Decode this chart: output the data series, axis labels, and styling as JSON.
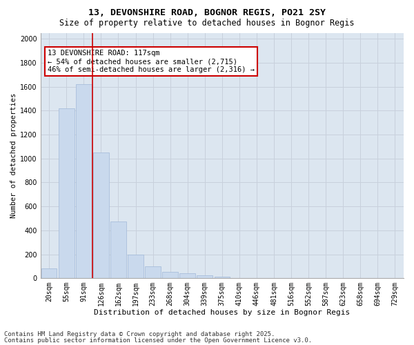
{
  "title_line1": "13, DEVONSHIRE ROAD, BOGNOR REGIS, PO21 2SY",
  "title_line2": "Size of property relative to detached houses in Bognor Regis",
  "xlabel": "Distribution of detached houses by size in Bognor Regis",
  "ylabel": "Number of detached properties",
  "categories": [
    "20sqm",
    "55sqm",
    "91sqm",
    "126sqm",
    "162sqm",
    "197sqm",
    "233sqm",
    "268sqm",
    "304sqm",
    "339sqm",
    "375sqm",
    "410sqm",
    "446sqm",
    "481sqm",
    "516sqm",
    "552sqm",
    "587sqm",
    "623sqm",
    "658sqm",
    "694sqm",
    "729sqm"
  ],
  "values": [
    80,
    1420,
    1620,
    1050,
    475,
    200,
    100,
    55,
    40,
    25,
    10,
    0,
    0,
    0,
    0,
    0,
    0,
    0,
    0,
    0,
    0
  ],
  "bar_color": "#c9d9ed",
  "bar_edge_color": "#a0b8d8",
  "grid_color": "#c8d0dc",
  "background_color": "#dce6f0",
  "vline_color": "#cc0000",
  "vline_pos": 2.5,
  "annotation_line1": "13 DEVONSHIRE ROAD: 117sqm",
  "annotation_line2": "← 54% of detached houses are smaller (2,715)",
  "annotation_line3": "46% of semi-detached houses are larger (2,316) →",
  "annotation_box_color": "#cc0000",
  "footer_line1": "Contains HM Land Registry data © Crown copyright and database right 2025.",
  "footer_line2": "Contains public sector information licensed under the Open Government Licence v3.0.",
  "ylim": [
    0,
    2050
  ],
  "yticks": [
    0,
    200,
    400,
    600,
    800,
    1000,
    1200,
    1400,
    1600,
    1800,
    2000
  ],
  "title_fontsize": 9.5,
  "subtitle_fontsize": 8.5,
  "xlabel_fontsize": 8,
  "ylabel_fontsize": 7.5,
  "tick_fontsize": 7,
  "footer_fontsize": 6.5,
  "annotation_fontsize": 7.5
}
